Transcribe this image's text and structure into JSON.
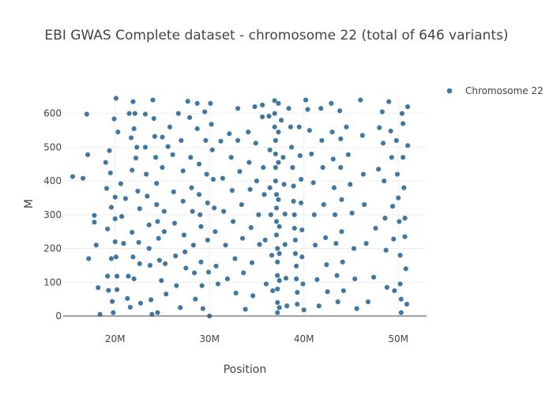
{
  "chart_data": {
    "type": "scatter",
    "title": "EBI GWAS Complete dataset - chromosome 22 (total of 646 variants)",
    "xlabel": "Position",
    "ylabel": "M",
    "xlim": [
      14500000,
      53000000
    ],
    "ylim": [
      0,
      660
    ],
    "grid": true,
    "legend_position": "top-right",
    "x_ticks": [
      {
        "value": 20000000,
        "label": "20M"
      },
      {
        "value": 30000000,
        "label": "30M"
      },
      {
        "value": 40000000,
        "label": "40M"
      },
      {
        "value": 50000000,
        "label": "50M"
      }
    ],
    "y_ticks": [
      {
        "value": 0,
        "label": "0"
      },
      {
        "value": 100,
        "label": "100"
      },
      {
        "value": 200,
        "label": "200"
      },
      {
        "value": 300,
        "label": "300"
      },
      {
        "value": 400,
        "label": "400"
      },
      {
        "value": 500,
        "label": "500"
      },
      {
        "value": 600,
        "label": "600"
      }
    ],
    "series": [
      {
        "name": "Chromosome 22",
        "color": "#1f5f8f",
        "points": [
          [
            15500000,
            413
          ],
          [
            16600000,
            408
          ],
          [
            17000000,
            598
          ],
          [
            17100000,
            478
          ],
          [
            17200000,
            170
          ],
          [
            17800000,
            298
          ],
          [
            17800000,
            278
          ],
          [
            18000000,
            210
          ],
          [
            18200000,
            84
          ],
          [
            18400000,
            5
          ],
          [
            19000000,
            455
          ],
          [
            19100000,
            378
          ],
          [
            19200000,
            258
          ],
          [
            19200000,
            118
          ],
          [
            19300000,
            76
          ],
          [
            19400000,
            490
          ],
          [
            19500000,
            424
          ],
          [
            19600000,
            322
          ],
          [
            19600000,
            170
          ],
          [
            19700000,
            43
          ],
          [
            19900000,
            584
          ],
          [
            20000000,
            220
          ],
          [
            20000000,
            288
          ],
          [
            20100000,
            645
          ],
          [
            20100000,
            175
          ],
          [
            20200000,
            118
          ],
          [
            20200000,
            78
          ],
          [
            20000000,
            352
          ],
          [
            20300000,
            545
          ],
          [
            19800000,
            10
          ],
          [
            20600000,
            392
          ],
          [
            20700000,
            295
          ],
          [
            20900000,
            215
          ],
          [
            21100000,
            348
          ],
          [
            21300000,
            52
          ],
          [
            21400000,
            118
          ],
          [
            21600000,
            26
          ],
          [
            21700000,
            528
          ],
          [
            21800000,
            432
          ],
          [
            21800000,
            248
          ],
          [
            21900000,
            175
          ],
          [
            22000000,
            110
          ],
          [
            21900000,
            635
          ],
          [
            22100000,
            600
          ],
          [
            22200000,
            468
          ],
          [
            22400000,
            370
          ],
          [
            22600000,
            318
          ],
          [
            22500000,
            218
          ],
          [
            22600000,
            155
          ],
          [
            22700000,
            38
          ],
          [
            22000000,
            555
          ],
          [
            22300000,
            500
          ],
          [
            21500000,
            600
          ],
          [
            23200000,
            598
          ],
          [
            23200000,
            500
          ],
          [
            23300000,
            420
          ],
          [
            23400000,
            355
          ],
          [
            23600000,
            270
          ],
          [
            23600000,
            200
          ],
          [
            23700000,
            150
          ],
          [
            23800000,
            48
          ],
          [
            23900000,
            5
          ],
          [
            24000000,
            640
          ],
          [
            24100000,
            585
          ],
          [
            24200000,
            532
          ],
          [
            24300000,
            470
          ],
          [
            24400000,
            393
          ],
          [
            24400000,
            330
          ],
          [
            24500000,
            280
          ],
          [
            24600000,
            230
          ],
          [
            24700000,
            165
          ],
          [
            24900000,
            105
          ],
          [
            24500000,
            10
          ],
          [
            25000000,
            530
          ],
          [
            25000000,
            440
          ],
          [
            25200000,
            310
          ],
          [
            25200000,
            250
          ],
          [
            25300000,
            155
          ],
          [
            25400000,
            65
          ],
          [
            25600000,
            502
          ],
          [
            25800000,
            560
          ],
          [
            26100000,
            478
          ],
          [
            26200000,
            368
          ],
          [
            26300000,
            275
          ],
          [
            26400000,
            178
          ],
          [
            26500000,
            90
          ],
          [
            26700000,
            600
          ],
          [
            26900000,
            25
          ],
          [
            27000000,
            520
          ],
          [
            27200000,
            430
          ],
          [
            27200000,
            340
          ],
          [
            27300000,
            240
          ],
          [
            27400000,
            190
          ],
          [
            27500000,
            142
          ],
          [
            27700000,
            636
          ],
          [
            27900000,
            588
          ],
          [
            28000000,
            470
          ],
          [
            28100000,
            380
          ],
          [
            28200000,
            310
          ],
          [
            28300000,
            210
          ],
          [
            28400000,
            128
          ],
          [
            28500000,
            50
          ],
          [
            28700000,
            630
          ],
          [
            28700000,
            555
          ],
          [
            28900000,
            450
          ],
          [
            28900000,
            360
          ],
          [
            29000000,
            300
          ],
          [
            29100000,
            265
          ],
          [
            29100000,
            160
          ],
          [
            29200000,
            90
          ],
          [
            29300000,
            22
          ],
          [
            29500000,
            605
          ],
          [
            29600000,
            520
          ],
          [
            29700000,
            420
          ],
          [
            29800000,
            335
          ],
          [
            29800000,
            225
          ],
          [
            29900000,
            130
          ],
          [
            30000000,
            0
          ],
          [
            30100000,
            630
          ],
          [
            30200000,
            568
          ],
          [
            30300000,
            492
          ],
          [
            30400000,
            405
          ],
          [
            30500000,
            320
          ],
          [
            30600000,
            250
          ],
          [
            30700000,
            148
          ],
          [
            30900000,
            95
          ],
          [
            31200000,
            518
          ],
          [
            31400000,
            408
          ],
          [
            31500000,
            310
          ],
          [
            31700000,
            210
          ],
          [
            31900000,
            110
          ],
          [
            32100000,
            540
          ],
          [
            32300000,
            470
          ],
          [
            32400000,
            372
          ],
          [
            32500000,
            280
          ],
          [
            32700000,
            170
          ],
          [
            32800000,
            68
          ],
          [
            33000000,
            615
          ],
          [
            33000000,
            520
          ],
          [
            33200000,
            428
          ],
          [
            33400000,
            330
          ],
          [
            33500000,
            230
          ],
          [
            33600000,
            128
          ],
          [
            33800000,
            20
          ],
          [
            34100000,
            545
          ],
          [
            34200000,
            455
          ],
          [
            34300000,
            375
          ],
          [
            34400000,
            262
          ],
          [
            34500000,
            158
          ],
          [
            34600000,
            60
          ],
          [
            34800000,
            620
          ],
          [
            34900000,
            512
          ],
          [
            35000000,
            400
          ],
          [
            35200000,
            300
          ],
          [
            35300000,
            212
          ],
          [
            35600000,
            625
          ],
          [
            35600000,
            590
          ],
          [
            35700000,
            440
          ],
          [
            35800000,
            360
          ],
          [
            35900000,
            225
          ],
          [
            36000000,
            95
          ],
          [
            36300000,
            592
          ],
          [
            36400000,
            492
          ],
          [
            36400000,
            380
          ],
          [
            36500000,
            300
          ],
          [
            36600000,
            180
          ],
          [
            36700000,
            75
          ],
          [
            36900000,
            638
          ],
          [
            36900000,
            600
          ],
          [
            36900000,
            560
          ],
          [
            37000000,
            520
          ],
          [
            37000000,
            480
          ],
          [
            37000000,
            440
          ],
          [
            37000000,
            400
          ],
          [
            37100000,
            360
          ],
          [
            37100000,
            320
          ],
          [
            37100000,
            280
          ],
          [
            37100000,
            240
          ],
          [
            37200000,
            200
          ],
          [
            37200000,
            160
          ],
          [
            37200000,
            120
          ],
          [
            37200000,
            80
          ],
          [
            37200000,
            40
          ],
          [
            37200000,
            10
          ],
          [
            37300000,
            630
          ],
          [
            37300000,
            545
          ],
          [
            37300000,
            455
          ],
          [
            37300000,
            345
          ],
          [
            37400000,
            265
          ],
          [
            37400000,
            185
          ],
          [
            37400000,
            105
          ],
          [
            37400000,
            25
          ],
          [
            37600000,
            580
          ],
          [
            37800000,
            470
          ],
          [
            37900000,
            390
          ],
          [
            38000000,
            302
          ],
          [
            38000000,
            212
          ],
          [
            38100000,
            112
          ],
          [
            38200000,
            30
          ],
          [
            38400000,
            615
          ],
          [
            38600000,
            560
          ],
          [
            38700000,
            500
          ],
          [
            38800000,
            440
          ],
          [
            38900000,
            385
          ],
          [
            38900000,
            340
          ],
          [
            39000000,
            300
          ],
          [
            39000000,
            260
          ],
          [
            39100000,
            225
          ],
          [
            39100000,
            185
          ],
          [
            39200000,
            148
          ],
          [
            39200000,
            110
          ],
          [
            39300000,
            70
          ],
          [
            39300000,
            35
          ],
          [
            39500000,
            560
          ],
          [
            39600000,
            475
          ],
          [
            39700000,
            405
          ],
          [
            39700000,
            335
          ],
          [
            39800000,
            255
          ],
          [
            39800000,
            175
          ],
          [
            39900000,
            95
          ],
          [
            40000000,
            18
          ],
          [
            40200000,
            640
          ],
          [
            40400000,
            612
          ],
          [
            40600000,
            550
          ],
          [
            40800000,
            480
          ],
          [
            41000000,
            395
          ],
          [
            41100000,
            300
          ],
          [
            41200000,
            210
          ],
          [
            41400000,
            108
          ],
          [
            41600000,
            30
          ],
          [
            41800000,
            615
          ],
          [
            41900000,
            520
          ],
          [
            42000000,
            440
          ],
          [
            42100000,
            330
          ],
          [
            42300000,
            232
          ],
          [
            42400000,
            152
          ],
          [
            42500000,
            72
          ],
          [
            42900000,
            630
          ],
          [
            43000000,
            545
          ],
          [
            43100000,
            465
          ],
          [
            43200000,
            380
          ],
          [
            43300000,
            300
          ],
          [
            43400000,
            215
          ],
          [
            43500000,
            120
          ],
          [
            43600000,
            42
          ],
          [
            43800000,
            608
          ],
          [
            43900000,
            525
          ],
          [
            43900000,
            440
          ],
          [
            44000000,
            345
          ],
          [
            44000000,
            250
          ],
          [
            44100000,
            160
          ],
          [
            44200000,
            75
          ],
          [
            44500000,
            560
          ],
          [
            44700000,
            478
          ],
          [
            44900000,
            390
          ],
          [
            45100000,
            305
          ],
          [
            45300000,
            200
          ],
          [
            45400000,
            110
          ],
          [
            45600000,
            22
          ],
          [
            46000000,
            640
          ],
          [
            46200000,
            535
          ],
          [
            46300000,
            420
          ],
          [
            46400000,
            330
          ],
          [
            46600000,
            215
          ],
          [
            46800000,
            42
          ],
          [
            47400000,
            115
          ],
          [
            47600000,
            260
          ],
          [
            47900000,
            435
          ],
          [
            48000000,
            558
          ],
          [
            48300000,
            605
          ],
          [
            48400000,
            512
          ],
          [
            48500000,
            400
          ],
          [
            48600000,
            290
          ],
          [
            48700000,
            195
          ],
          [
            48800000,
            85
          ],
          [
            49000000,
            635
          ],
          [
            49200000,
            548
          ],
          [
            49300000,
            470
          ],
          [
            49400000,
            325
          ],
          [
            49500000,
            228
          ],
          [
            49600000,
            75
          ],
          [
            49800000,
            520
          ],
          [
            49900000,
            420
          ],
          [
            50000000,
            350
          ],
          [
            50100000,
            280
          ],
          [
            50200000,
            180
          ],
          [
            50200000,
            95
          ],
          [
            50300000,
            50
          ],
          [
            50400000,
            600
          ],
          [
            50500000,
            570
          ],
          [
            50500000,
            470
          ],
          [
            50600000,
            380
          ],
          [
            50700000,
            290
          ],
          [
            50700000,
            235
          ],
          [
            50800000,
            140
          ],
          [
            50900000,
            35
          ],
          [
            51000000,
            505
          ],
          [
            51000000,
            620
          ],
          [
            50300000,
            10
          ]
        ]
      }
    ]
  }
}
